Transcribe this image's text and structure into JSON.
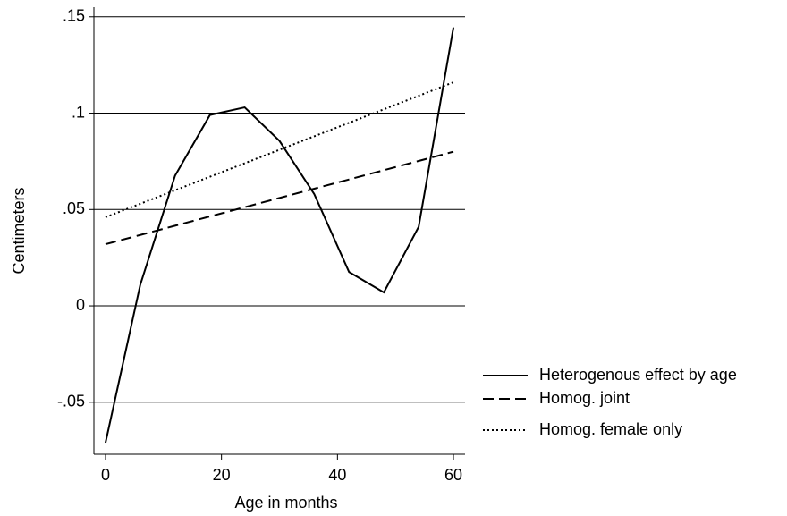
{
  "chart_data": {
    "type": "line",
    "xlabel": "Age in months",
    "ylabel": "Centimeters",
    "x": [
      0,
      6,
      12,
      18,
      24,
      30,
      36,
      42,
      48,
      54,
      60
    ],
    "series": [
      {
        "name": "Heterogenous effect by age",
        "color": "#000000",
        "dash": "solid",
        "values": [
          -0.071,
          0.011,
          0.0676,
          0.099,
          0.103,
          0.0856,
          0.058,
          0.0176,
          0.007,
          0.041,
          0.1445
        ]
      },
      {
        "name": "Homog. joint",
        "color": "#000000",
        "dash": "dashed",
        "values": [
          0.032,
          0.0368,
          0.0416,
          0.0464,
          0.0512,
          0.056,
          0.0608,
          0.0656,
          0.0704,
          0.0752,
          0.08
        ]
      },
      {
        "name": "Homog. female only",
        "color": "#000000",
        "dash": "dotted",
        "values": [
          0.046,
          0.053,
          0.06,
          0.067,
          0.074,
          0.081,
          0.088,
          0.095,
          0.102,
          0.109,
          0.116
        ]
      }
    ],
    "xlim": [
      -2,
      62
    ],
    "ylim": [
      -0.077,
      0.155
    ],
    "xticks": [
      0,
      20,
      40,
      60
    ],
    "yticks": [
      {
        "value": 0.15,
        "label": ".15"
      },
      {
        "value": 0.1,
        "label": ".1"
      },
      {
        "value": 0.05,
        "label": ".05"
      },
      0,
      {
        "value": -0.05,
        "label": "-.05"
      }
    ],
    "grid": true,
    "legend": "right"
  }
}
